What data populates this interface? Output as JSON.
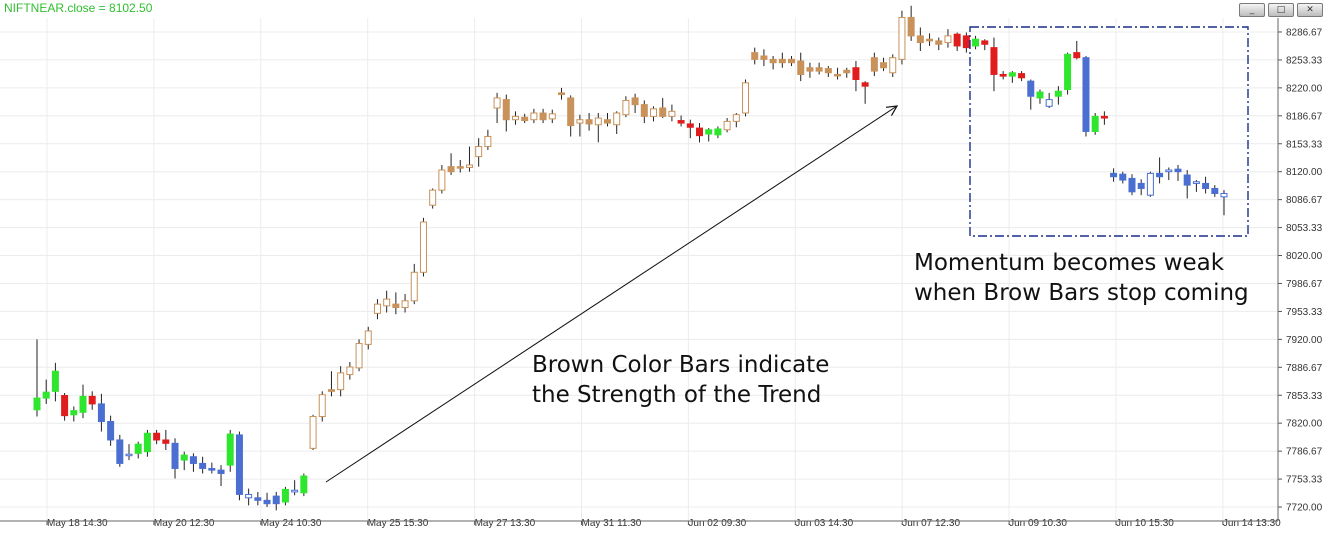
{
  "window": {
    "title": "NIFTNEAR.close = 8102.50",
    "buttons": [
      {
        "name": "minimize-button",
        "icon": "minimize-icon",
        "glyph": "_"
      },
      {
        "name": "maximize-button",
        "icon": "maximize-icon",
        "glyph": "□"
      },
      {
        "name": "close-button",
        "icon": "close-icon",
        "glyph": "✕"
      }
    ]
  },
  "annotations": {
    "brown_line1": "Brown Color Bars indicate",
    "brown_line2": "the Strength of the Trend",
    "momentum_line1": "Momentum becomes weak",
    "momentum_line2": "when Brow Bars stop coming"
  },
  "chart_data": {
    "type": "candlestick",
    "title": "NIFTNEAR.close = 8102.50",
    "ylim": [
      7703.33,
      8303.33
    ],
    "y_ticks": [
      "8286.67",
      "8253.33",
      "8220.00",
      "8186.67",
      "8153.33",
      "8120.00",
      "8086.67",
      "8053.33",
      "8020.00",
      "7986.67",
      "7953.33",
      "7920.00",
      "7886.67",
      "7853.33",
      "7820.00",
      "7786.67",
      "7753.33",
      "7720.00"
    ],
    "x_ticks": [
      "May 18 14:30",
      "May 20 12:30",
      "May 24 10:30",
      "May 25 15:30",
      "May 27 13:30",
      "May 31 11:30",
      "Jun 02 09:30",
      "Jun 03 14:30",
      "Jun 07 12:30",
      "Jun 09 10:30",
      "Jun 10 15:30",
      "Jun 14 13:30"
    ],
    "grid": true,
    "colors": {
      "brown": "#c8925a",
      "red": "#e01c1c",
      "green": "#2fe62f",
      "blue": "#4a6fd1",
      "wick": "#222222",
      "grid": "#ececec",
      "arrow": "#111111",
      "box": "#1a2f8c"
    },
    "candles": [
      {
        "o": 7836,
        "h": 7920,
        "l": 7828,
        "c": 7850,
        "k": "green",
        "f": 1
      },
      {
        "o": 7850,
        "h": 7872,
        "l": 7843,
        "c": 7857,
        "k": "green",
        "f": 1
      },
      {
        "o": 7858,
        "h": 7892,
        "l": 7846,
        "c": 7882,
        "k": "green",
        "f": 1
      },
      {
        "o": 7853,
        "h": 7856,
        "l": 7823,
        "c": 7829,
        "k": "red",
        "f": 1
      },
      {
        "o": 7830,
        "h": 7840,
        "l": 7822,
        "c": 7835,
        "k": "green",
        "f": 1
      },
      {
        "o": 7833,
        "h": 7866,
        "l": 7826,
        "c": 7852,
        "k": "green",
        "f": 1
      },
      {
        "o": 7852,
        "h": 7858,
        "l": 7836,
        "c": 7843,
        "k": "red",
        "f": 1
      },
      {
        "o": 7843,
        "h": 7855,
        "l": 7810,
        "c": 7822,
        "k": "blue",
        "f": 1
      },
      {
        "o": 7822,
        "h": 7829,
        "l": 7793,
        "c": 7800,
        "k": "blue",
        "f": 1
      },
      {
        "o": 7800,
        "h": 7806,
        "l": 7768,
        "c": 7772,
        "k": "blue",
        "f": 1
      },
      {
        "o": 7782,
        "h": 7795,
        "l": 7776,
        "c": 7783,
        "k": "blue",
        "f": 0
      },
      {
        "o": 7784,
        "h": 7798,
        "l": 7778,
        "c": 7795,
        "k": "green",
        "f": 1
      },
      {
        "o": 7786,
        "h": 7812,
        "l": 7780,
        "c": 7808,
        "k": "green",
        "f": 1
      },
      {
        "o": 7808,
        "h": 7812,
        "l": 7795,
        "c": 7800,
        "k": "red",
        "f": 1
      },
      {
        "o": 7800,
        "h": 7812,
        "l": 7788,
        "c": 7796,
        "k": "red",
        "f": 1
      },
      {
        "o": 7796,
        "h": 7802,
        "l": 7754,
        "c": 7766,
        "k": "blue",
        "f": 1
      },
      {
        "o": 7776,
        "h": 7786,
        "l": 7764,
        "c": 7782,
        "k": "green",
        "f": 1
      },
      {
        "o": 7780,
        "h": 7784,
        "l": 7762,
        "c": 7772,
        "k": "blue",
        "f": 1
      },
      {
        "o": 7772,
        "h": 7780,
        "l": 7760,
        "c": 7766,
        "k": "blue",
        "f": 1
      },
      {
        "o": 7766,
        "h": 7773,
        "l": 7760,
        "c": 7764,
        "k": "blue",
        "f": 1
      },
      {
        "o": 7764,
        "h": 7770,
        "l": 7745,
        "c": 7760,
        "k": "blue",
        "f": 1
      },
      {
        "o": 7770,
        "h": 7812,
        "l": 7762,
        "c": 7807,
        "k": "green",
        "f": 1
      },
      {
        "o": 7806,
        "h": 7810,
        "l": 7728,
        "c": 7735,
        "k": "blue",
        "f": 1
      },
      {
        "o": 7735,
        "h": 7742,
        "l": 7722,
        "c": 7731,
        "k": "blue",
        "f": 0
      },
      {
        "o": 7731,
        "h": 7738,
        "l": 7722,
        "c": 7728,
        "k": "blue",
        "f": 1
      },
      {
        "o": 7728,
        "h": 7737,
        "l": 7720,
        "c": 7724,
        "k": "blue",
        "f": 1
      },
      {
        "o": 7724,
        "h": 7738,
        "l": 7716,
        "c": 7733,
        "k": "blue",
        "f": 1
      },
      {
        "o": 7726,
        "h": 7744,
        "l": 7722,
        "c": 7741,
        "k": "green",
        "f": 1
      },
      {
        "o": 7740,
        "h": 7752,
        "l": 7734,
        "c": 7738,
        "k": "blue",
        "f": 0
      },
      {
        "o": 7737,
        "h": 7760,
        "l": 7733,
        "c": 7757,
        "k": "green",
        "f": 1
      },
      {
        "o": 7790,
        "h": 7830,
        "l": 7788,
        "c": 7828,
        "k": "brown",
        "f": 0
      },
      {
        "o": 7828,
        "h": 7858,
        "l": 7822,
        "c": 7854,
        "k": "brown",
        "f": 0
      },
      {
        "o": 7858,
        "h": 7882,
        "l": 7852,
        "c": 7860,
        "k": "brown",
        "f": 1
      },
      {
        "o": 7860,
        "h": 7888,
        "l": 7852,
        "c": 7880,
        "k": "brown",
        "f": 0
      },
      {
        "o": 7878,
        "h": 7893,
        "l": 7872,
        "c": 7887,
        "k": "brown",
        "f": 0
      },
      {
        "o": 7886,
        "h": 7920,
        "l": 7882,
        "c": 7915,
        "k": "brown",
        "f": 0
      },
      {
        "o": 7914,
        "h": 7935,
        "l": 7908,
        "c": 7930,
        "k": "brown",
        "f": 0
      },
      {
        "o": 7951,
        "h": 7968,
        "l": 7944,
        "c": 7962,
        "k": "brown",
        "f": 0
      },
      {
        "o": 7960,
        "h": 7978,
        "l": 7952,
        "c": 7968,
        "k": "brown",
        "f": 0
      },
      {
        "o": 7962,
        "h": 7976,
        "l": 7950,
        "c": 7958,
        "k": "brown",
        "f": 1
      },
      {
        "o": 7966,
        "h": 7974,
        "l": 7952,
        "c": 7958,
        "k": "brown",
        "f": 0
      },
      {
        "o": 7966,
        "h": 8010,
        "l": 7962,
        "c": 8000,
        "k": "brown",
        "f": 0
      },
      {
        "o": 8000,
        "h": 8065,
        "l": 7995,
        "c": 8060,
        "k": "brown",
        "f": 0
      },
      {
        "o": 8080,
        "h": 8100,
        "l": 8076,
        "c": 8098,
        "k": "brown",
        "f": 0
      },
      {
        "o": 8098,
        "h": 8128,
        "l": 8094,
        "c": 8122,
        "k": "brown",
        "f": 0
      },
      {
        "o": 8120,
        "h": 8142,
        "l": 8116,
        "c": 8126,
        "k": "brown",
        "f": 1
      },
      {
        "o": 8126,
        "h": 8134,
        "l": 8119,
        "c": 8125,
        "k": "brown",
        "f": 1
      },
      {
        "o": 8125,
        "h": 8150,
        "l": 8120,
        "c": 8128,
        "k": "brown",
        "f": 0
      },
      {
        "o": 8138,
        "h": 8160,
        "l": 8126,
        "c": 8150,
        "k": "brown",
        "f": 0
      },
      {
        "o": 8150,
        "h": 8170,
        "l": 8146,
        "c": 8162,
        "k": "brown",
        "f": 0
      },
      {
        "o": 8196,
        "h": 8214,
        "l": 8178,
        "c": 8208,
        "k": "brown",
        "f": 0
      },
      {
        "o": 8206,
        "h": 8212,
        "l": 8168,
        "c": 8182,
        "k": "brown",
        "f": 1
      },
      {
        "o": 8182,
        "h": 8192,
        "l": 8176,
        "c": 8186,
        "k": "brown",
        "f": 0
      },
      {
        "o": 8185,
        "h": 8189,
        "l": 8178,
        "c": 8181,
        "k": "brown",
        "f": 1
      },
      {
        "o": 8182,
        "h": 8195,
        "l": 8178,
        "c": 8190,
        "k": "brown",
        "f": 0
      },
      {
        "o": 8190,
        "h": 8195,
        "l": 8178,
        "c": 8182,
        "k": "brown",
        "f": 1
      },
      {
        "o": 8183,
        "h": 8194,
        "l": 8178,
        "c": 8189,
        "k": "brown",
        "f": 0
      },
      {
        "o": 8212,
        "h": 8220,
        "l": 8206,
        "c": 8214,
        "k": "brown",
        "f": 1
      },
      {
        "o": 8208,
        "h": 8211,
        "l": 8162,
        "c": 8175,
        "k": "brown",
        "f": 1
      },
      {
        "o": 8178,
        "h": 8188,
        "l": 8162,
        "c": 8182,
        "k": "brown",
        "f": 0
      },
      {
        "o": 8182,
        "h": 8190,
        "l": 8169,
        "c": 8177,
        "k": "brown",
        "f": 1
      },
      {
        "o": 8176,
        "h": 8190,
        "l": 8155,
        "c": 8184,
        "k": "brown",
        "f": 0
      },
      {
        "o": 8182,
        "h": 8190,
        "l": 8174,
        "c": 8178,
        "k": "brown",
        "f": 1
      },
      {
        "o": 8176,
        "h": 8192,
        "l": 8165,
        "c": 8190,
        "k": "brown",
        "f": 0
      },
      {
        "o": 8188,
        "h": 8210,
        "l": 8185,
        "c": 8205,
        "k": "brown",
        "f": 0
      },
      {
        "o": 8208,
        "h": 8213,
        "l": 8190,
        "c": 8200,
        "k": "brown",
        "f": 1
      },
      {
        "o": 8200,
        "h": 8205,
        "l": 8178,
        "c": 8186,
        "k": "brown",
        "f": 1
      },
      {
        "o": 8186,
        "h": 8198,
        "l": 8180,
        "c": 8195,
        "k": "brown",
        "f": 0
      },
      {
        "o": 8196,
        "h": 8208,
        "l": 8184,
        "c": 8186,
        "k": "brown",
        "f": 1
      },
      {
        "o": 8186,
        "h": 8200,
        "l": 8180,
        "c": 8192,
        "k": "brown",
        "f": 0
      },
      {
        "o": 8181,
        "h": 8187,
        "l": 8174,
        "c": 8178,
        "k": "red",
        "f": 1
      },
      {
        "o": 8177,
        "h": 8182,
        "l": 8160,
        "c": 8173,
        "k": "red",
        "f": 1
      },
      {
        "o": 8172,
        "h": 8178,
        "l": 8155,
        "c": 8163,
        "k": "red",
        "f": 1
      },
      {
        "o": 8165,
        "h": 8172,
        "l": 8156,
        "c": 8170,
        "k": "green",
        "f": 1
      },
      {
        "o": 8164,
        "h": 8174,
        "l": 8160,
        "c": 8171,
        "k": "green",
        "f": 1
      },
      {
        "o": 8170,
        "h": 8184,
        "l": 8167,
        "c": 8180,
        "k": "brown",
        "f": 0
      },
      {
        "o": 8180,
        "h": 8190,
        "l": 8173,
        "c": 8188,
        "k": "brown",
        "f": 0
      },
      {
        "o": 8190,
        "h": 8230,
        "l": 8186,
        "c": 8226,
        "k": "brown",
        "f": 0
      },
      {
        "o": 8254,
        "h": 8268,
        "l": 8248,
        "c": 8262,
        "k": "brown",
        "f": 1
      },
      {
        "o": 8258,
        "h": 8266,
        "l": 8246,
        "c": 8254,
        "k": "brown",
        "f": 1
      },
      {
        "o": 8254,
        "h": 8258,
        "l": 8242,
        "c": 8250,
        "k": "brown",
        "f": 1
      },
      {
        "o": 8250,
        "h": 8262,
        "l": 8244,
        "c": 8254,
        "k": "brown",
        "f": 1
      },
      {
        "o": 8254,
        "h": 8258,
        "l": 8246,
        "c": 8250,
        "k": "brown",
        "f": 1
      },
      {
        "o": 8252,
        "h": 8262,
        "l": 8228,
        "c": 8236,
        "k": "brown",
        "f": 1
      },
      {
        "o": 8240,
        "h": 8250,
        "l": 8232,
        "c": 8244,
        "k": "brown",
        "f": 1
      },
      {
        "o": 8244,
        "h": 8250,
        "l": 8236,
        "c": 8240,
        "k": "brown",
        "f": 1
      },
      {
        "o": 8243,
        "h": 8246,
        "l": 8233,
        "c": 8238,
        "k": "brown",
        "f": 1
      },
      {
        "o": 8236,
        "h": 8244,
        "l": 8230,
        "c": 8236,
        "k": "brown",
        "f": 1
      },
      {
        "o": 8238,
        "h": 8244,
        "l": 8232,
        "c": 8241,
        "k": "brown",
        "f": 1
      },
      {
        "o": 8244,
        "h": 8252,
        "l": 8216,
        "c": 8230,
        "k": "red",
        "f": 1
      },
      {
        "o": 8226,
        "h": 8228,
        "l": 8201,
        "c": 8222,
        "k": "red",
        "f": 1
      },
      {
        "o": 8240,
        "h": 8262,
        "l": 8234,
        "c": 8256,
        "k": "brown",
        "f": 1
      },
      {
        "o": 8250,
        "h": 8256,
        "l": 8240,
        "c": 8244,
        "k": "brown",
        "f": 1
      },
      {
        "o": 8238,
        "h": 8260,
        "l": 8233,
        "c": 8256,
        "k": "brown",
        "f": 0
      },
      {
        "o": 8254,
        "h": 8312,
        "l": 8248,
        "c": 8304,
        "k": "brown",
        "f": 0
      },
      {
        "o": 8304,
        "h": 8318,
        "l": 8276,
        "c": 8282,
        "k": "brown",
        "f": 1
      },
      {
        "o": 8282,
        "h": 8292,
        "l": 8264,
        "c": 8274,
        "k": "brown",
        "f": 1
      },
      {
        "o": 8276,
        "h": 8285,
        "l": 8270,
        "c": 8278,
        "k": "brown",
        "f": 1
      },
      {
        "o": 8272,
        "h": 8280,
        "l": 8265,
        "c": 8276,
        "k": "brown",
        "f": 1
      },
      {
        "o": 8274,
        "h": 8290,
        "l": 8268,
        "c": 8282,
        "k": "brown",
        "f": 0
      },
      {
        "o": 8284,
        "h": 8286,
        "l": 8264,
        "c": 8270,
        "k": "red",
        "f": 1
      },
      {
        "o": 8282,
        "h": 8286,
        "l": 8262,
        "c": 8268,
        "k": "red",
        "f": 1
      },
      {
        "o": 8278,
        "h": 8282,
        "l": 8266,
        "c": 8270,
        "k": "green",
        "f": 1
      },
      {
        "o": 8276,
        "h": 8278,
        "l": 8265,
        "c": 8272,
        "k": "red",
        "f": 1
      },
      {
        "o": 8268,
        "h": 8280,
        "l": 8216,
        "c": 8236,
        "k": "red",
        "f": 1
      },
      {
        "o": 8236,
        "h": 8240,
        "l": 8230,
        "c": 8234,
        "k": "red",
        "f": 1
      },
      {
        "o": 8234,
        "h": 8240,
        "l": 8226,
        "c": 8238,
        "k": "green",
        "f": 1
      },
      {
        "o": 8237,
        "h": 8240,
        "l": 8228,
        "c": 8232,
        "k": "red",
        "f": 1
      },
      {
        "o": 8228,
        "h": 8230,
        "l": 8194,
        "c": 8210,
        "k": "blue",
        "f": 1
      },
      {
        "o": 8208,
        "h": 8218,
        "l": 8201,
        "c": 8215,
        "k": "green",
        "f": 1
      },
      {
        "o": 8198,
        "h": 8214,
        "l": 8196,
        "c": 8206,
        "k": "blue",
        "f": 0
      },
      {
        "o": 8210,
        "h": 8222,
        "l": 8200,
        "c": 8216,
        "k": "green",
        "f": 1
      },
      {
        "o": 8218,
        "h": 8262,
        "l": 8212,
        "c": 8260,
        "k": "green",
        "f": 1
      },
      {
        "o": 8262,
        "h": 8276,
        "l": 8254,
        "c": 8256,
        "k": "red",
        "f": 1
      },
      {
        "o": 8256,
        "h": 8258,
        "l": 8162,
        "c": 8168,
        "k": "blue",
        "f": 1
      },
      {
        "o": 8168,
        "h": 8190,
        "l": 8164,
        "c": 8186,
        "k": "green",
        "f": 1
      },
      {
        "o": 8186,
        "h": 8192,
        "l": 8176,
        "c": 8184,
        "k": "red",
        "f": 1
      },
      {
        "o": 8118,
        "h": 8124,
        "l": 8108,
        "c": 8114,
        "k": "blue",
        "f": 1
      },
      {
        "o": 8117,
        "h": 8120,
        "l": 8106,
        "c": 8110,
        "k": "blue",
        "f": 1
      },
      {
        "o": 8112,
        "h": 8117,
        "l": 8092,
        "c": 8096,
        "k": "blue",
        "f": 1
      },
      {
        "o": 8100,
        "h": 8111,
        "l": 8092,
        "c": 8106,
        "k": "blue",
        "f": 1
      },
      {
        "o": 8092,
        "h": 8120,
        "l": 8090,
        "c": 8118,
        "k": "blue",
        "f": 0
      },
      {
        "o": 8114,
        "h": 8137,
        "l": 8106,
        "c": 8118,
        "k": "blue",
        "f": 1
      },
      {
        "o": 8120,
        "h": 8125,
        "l": 8110,
        "c": 8122,
        "k": "blue",
        "f": 0
      },
      {
        "o": 8123,
        "h": 8128,
        "l": 8109,
        "c": 8120,
        "k": "blue",
        "f": 1
      },
      {
        "o": 8116,
        "h": 8122,
        "l": 8088,
        "c": 8104,
        "k": "blue",
        "f": 1
      },
      {
        "o": 8106,
        "h": 8110,
        "l": 8096,
        "c": 8108,
        "k": "blue",
        "f": 0
      },
      {
        "o": 8106,
        "h": 8114,
        "l": 8094,
        "c": 8100,
        "k": "blue",
        "f": 1
      },
      {
        "o": 8100,
        "h": 8104,
        "l": 8090,
        "c": 8094,
        "k": "blue",
        "f": 1
      },
      {
        "o": 8090,
        "h": 8098,
        "l": 8068,
        "c": 8094,
        "k": "blue",
        "f": 0
      }
    ]
  }
}
